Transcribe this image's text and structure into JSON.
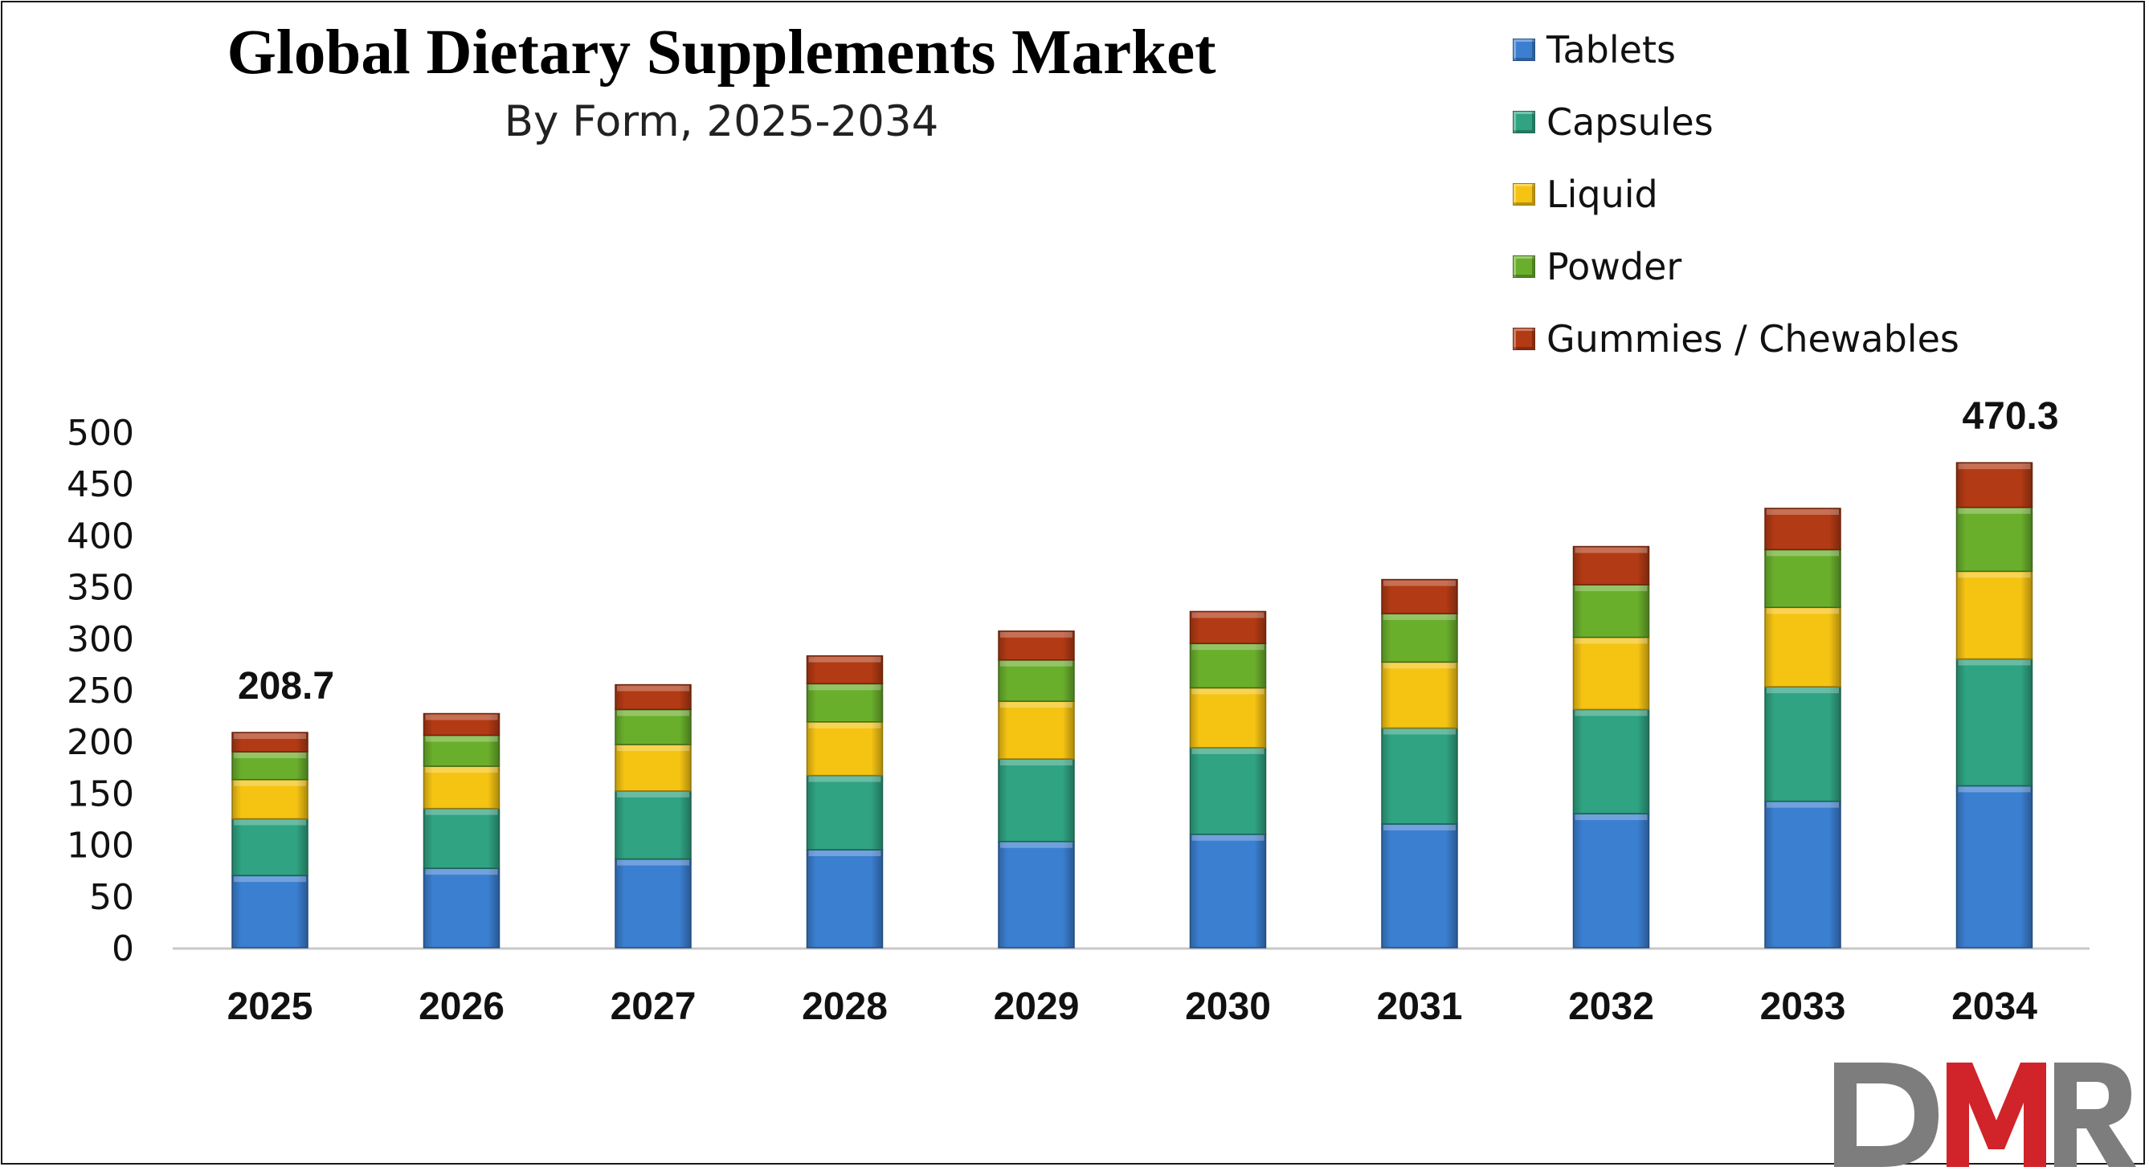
{
  "chart_data": {
    "type": "bar",
    "stacked": true,
    "title": "Global Dietary Supplements Market",
    "subtitle": "By Form, 2025-2034",
    "categories": [
      "2025",
      "2026",
      "2027",
      "2028",
      "2029",
      "2030",
      "2031",
      "2032",
      "2033",
      "2034"
    ],
    "series": [
      {
        "name": "Tablets",
        "color": "#3b7fd1",
        "values": [
          70,
          77,
          86,
          95,
          103,
          110,
          120,
          130,
          142,
          157
        ]
      },
      {
        "name": "Capsules",
        "color": "#2fa382",
        "values": [
          55,
          58,
          66,
          72,
          80,
          84,
          93,
          101,
          111,
          123
        ]
      },
      {
        "name": "Liquid",
        "color": "#f5c413",
        "values": [
          38,
          41,
          45,
          52,
          56,
          58,
          64,
          70,
          77,
          85
        ]
      },
      {
        "name": "Powder",
        "color": "#6aaf2c",
        "values": [
          27,
          30,
          34,
          37,
          40,
          43,
          47,
          51,
          56,
          62
        ]
      },
      {
        "name": "Gummies / Chewables",
        "color": "#b23a14",
        "values": [
          18.7,
          21,
          24,
          27,
          28,
          31,
          33,
          37,
          40,
          43.3
        ]
      }
    ],
    "data_labels": [
      {
        "category": "2025",
        "text": "208.7"
      },
      {
        "category": "2034",
        "text": "470.3"
      }
    ],
    "y_ticks": [
      "0",
      "50",
      "100",
      "150",
      "200",
      "250",
      "300",
      "350",
      "400",
      "450",
      "500"
    ],
    "ylim": [
      0,
      500
    ],
    "grid": false,
    "legend_position": "top-right",
    "xlabel": "",
    "ylabel": ""
  },
  "logo": {
    "text": "DMR",
    "colors": {
      "D": "#7d7d7d",
      "M": "#d0232a",
      "R": "#7d7d7d"
    }
  }
}
